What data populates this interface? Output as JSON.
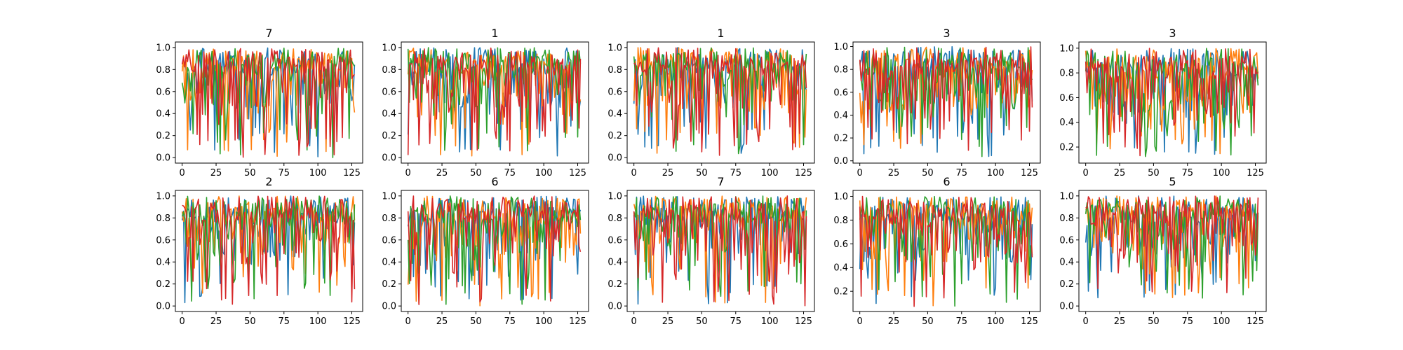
{
  "figure": {
    "series_colors": [
      "#1f77b4",
      "#ff7f0e",
      "#2ca02c",
      "#d62728"
    ],
    "background": "#ffffff"
  },
  "chart_data": [
    {
      "type": "line",
      "title": "7",
      "xlim": [
        -5,
        133
      ],
      "ylim": [
        -0.05,
        1.05
      ],
      "xticks": [
        0,
        25,
        50,
        75,
        100,
        125
      ],
      "xtick_labels": [
        "0",
        "25",
        "50",
        "75",
        "100",
        "125"
      ],
      "yticks": [
        0.0,
        0.2,
        0.4,
        0.6,
        0.8,
        1.0
      ],
      "ytick_labels": [
        "0.0",
        "0.2",
        "0.4",
        "0.6",
        "0.8",
        "1.0"
      ],
      "x_count": 128,
      "series_count": 4,
      "approx_y_min": 0.0,
      "approx_y_max": 1.0
    },
    {
      "type": "line",
      "title": "1",
      "xlim": [
        -5,
        133
      ],
      "ylim": [
        -0.05,
        1.05
      ],
      "xticks": [
        0,
        25,
        50,
        75,
        100,
        125
      ],
      "xtick_labels": [
        "0",
        "25",
        "50",
        "75",
        "100",
        "125"
      ],
      "yticks": [
        0.0,
        0.2,
        0.4,
        0.6,
        0.8,
        1.0
      ],
      "ytick_labels": [
        "0.0",
        "0.2",
        "0.4",
        "0.6",
        "0.8",
        "1.0"
      ],
      "x_count": 128,
      "series_count": 4,
      "approx_y_min": 0.0,
      "approx_y_max": 1.0
    },
    {
      "type": "line",
      "title": "1",
      "xlim": [
        -5,
        133
      ],
      "ylim": [
        -0.05,
        1.05
      ],
      "xticks": [
        0,
        25,
        50,
        75,
        100,
        125
      ],
      "xtick_labels": [
        "0",
        "25",
        "50",
        "75",
        "100",
        "125"
      ],
      "yticks": [
        0.0,
        0.2,
        0.4,
        0.6,
        0.8,
        1.0
      ],
      "ytick_labels": [
        "0.0",
        "0.2",
        "0.4",
        "0.6",
        "0.8",
        "1.0"
      ],
      "x_count": 128,
      "series_count": 4,
      "approx_y_min": 0.02,
      "approx_y_max": 1.0
    },
    {
      "type": "line",
      "title": "3",
      "xlim": [
        -5,
        133
      ],
      "ylim": [
        -0.02,
        1.04
      ],
      "xticks": [
        0,
        25,
        50,
        75,
        100,
        125
      ],
      "xtick_labels": [
        "0",
        "25",
        "50",
        "75",
        "100",
        "125"
      ],
      "yticks": [
        0.0,
        0.2,
        0.4,
        0.6,
        0.8,
        1.0
      ],
      "ytick_labels": [
        "0.0",
        "0.2",
        "0.4",
        "0.6",
        "0.8",
        "1.0"
      ],
      "x_count": 128,
      "series_count": 4,
      "approx_y_min": 0.03,
      "approx_y_max": 1.0
    },
    {
      "type": "line",
      "title": "3",
      "xlim": [
        -5,
        133
      ],
      "ylim": [
        0.07,
        1.05
      ],
      "xticks": [
        0,
        25,
        50,
        75,
        100,
        125
      ],
      "xtick_labels": [
        "0",
        "25",
        "50",
        "75",
        "100",
        "125"
      ],
      "yticks": [
        0.2,
        0.4,
        0.6,
        0.8,
        1.0
      ],
      "ytick_labels": [
        "0.2",
        "0.4",
        "0.6",
        "0.8",
        "1.0"
      ],
      "x_count": 128,
      "series_count": 4,
      "approx_y_min": 0.12,
      "approx_y_max": 1.0
    },
    {
      "type": "line",
      "title": "2",
      "xlim": [
        -5,
        133
      ],
      "ylim": [
        -0.05,
        1.05
      ],
      "xticks": [
        0,
        25,
        50,
        75,
        100,
        125
      ],
      "xtick_labels": [
        "0",
        "25",
        "50",
        "75",
        "100",
        "125"
      ],
      "yticks": [
        0.0,
        0.2,
        0.4,
        0.6,
        0.8,
        1.0
      ],
      "ytick_labels": [
        "0.0",
        "0.2",
        "0.4",
        "0.6",
        "0.8",
        "1.0"
      ],
      "x_count": 128,
      "series_count": 4,
      "approx_y_min": 0.0,
      "approx_y_max": 1.0
    },
    {
      "type": "line",
      "title": "6",
      "xlim": [
        -5,
        133
      ],
      "ylim": [
        -0.05,
        1.05
      ],
      "xticks": [
        0,
        25,
        50,
        75,
        100,
        125
      ],
      "xtick_labels": [
        "0",
        "25",
        "50",
        "75",
        "100",
        "125"
      ],
      "yticks": [
        0.0,
        0.2,
        0.4,
        0.6,
        0.8,
        1.0
      ],
      "ytick_labels": [
        "0.0",
        "0.2",
        "0.4",
        "0.6",
        "0.8",
        "1.0"
      ],
      "x_count": 128,
      "series_count": 4,
      "approx_y_min": 0.0,
      "approx_y_max": 1.0
    },
    {
      "type": "line",
      "title": "7",
      "xlim": [
        -5,
        133
      ],
      "ylim": [
        -0.05,
        1.05
      ],
      "xticks": [
        0,
        25,
        50,
        75,
        100,
        125
      ],
      "xtick_labels": [
        "0",
        "25",
        "50",
        "75",
        "100",
        "125"
      ],
      "yticks": [
        0.0,
        0.2,
        0.4,
        0.6,
        0.8,
        1.0
      ],
      "ytick_labels": [
        "0.0",
        "0.2",
        "0.4",
        "0.6",
        "0.8",
        "1.0"
      ],
      "x_count": 128,
      "series_count": 4,
      "approx_y_min": 0.0,
      "approx_y_max": 1.0
    },
    {
      "type": "line",
      "title": "6",
      "xlim": [
        -5,
        133
      ],
      "ylim": [
        0.03,
        1.05
      ],
      "xticks": [
        0,
        25,
        50,
        75,
        100,
        125
      ],
      "xtick_labels": [
        "0",
        "25",
        "50",
        "75",
        "100",
        "125"
      ],
      "yticks": [
        0.2,
        0.4,
        0.6,
        0.8,
        1.0
      ],
      "ytick_labels": [
        "0.2",
        "0.4",
        "0.6",
        "0.8",
        "1.0"
      ],
      "x_count": 128,
      "series_count": 4,
      "approx_y_min": 0.07,
      "approx_y_max": 1.0
    },
    {
      "type": "line",
      "title": "5",
      "xlim": [
        -5,
        133
      ],
      "ylim": [
        -0.05,
        1.05
      ],
      "xticks": [
        0,
        25,
        50,
        75,
        100,
        125
      ],
      "xtick_labels": [
        "0",
        "25",
        "50",
        "75",
        "100",
        "125"
      ],
      "yticks": [
        0.0,
        0.2,
        0.4,
        0.6,
        0.8,
        1.0
      ],
      "ytick_labels": [
        "0.0",
        "0.2",
        "0.4",
        "0.6",
        "0.8",
        "1.0"
      ],
      "x_count": 128,
      "series_count": 4,
      "approx_y_min": 0.07,
      "approx_y_max": 1.0
    }
  ]
}
